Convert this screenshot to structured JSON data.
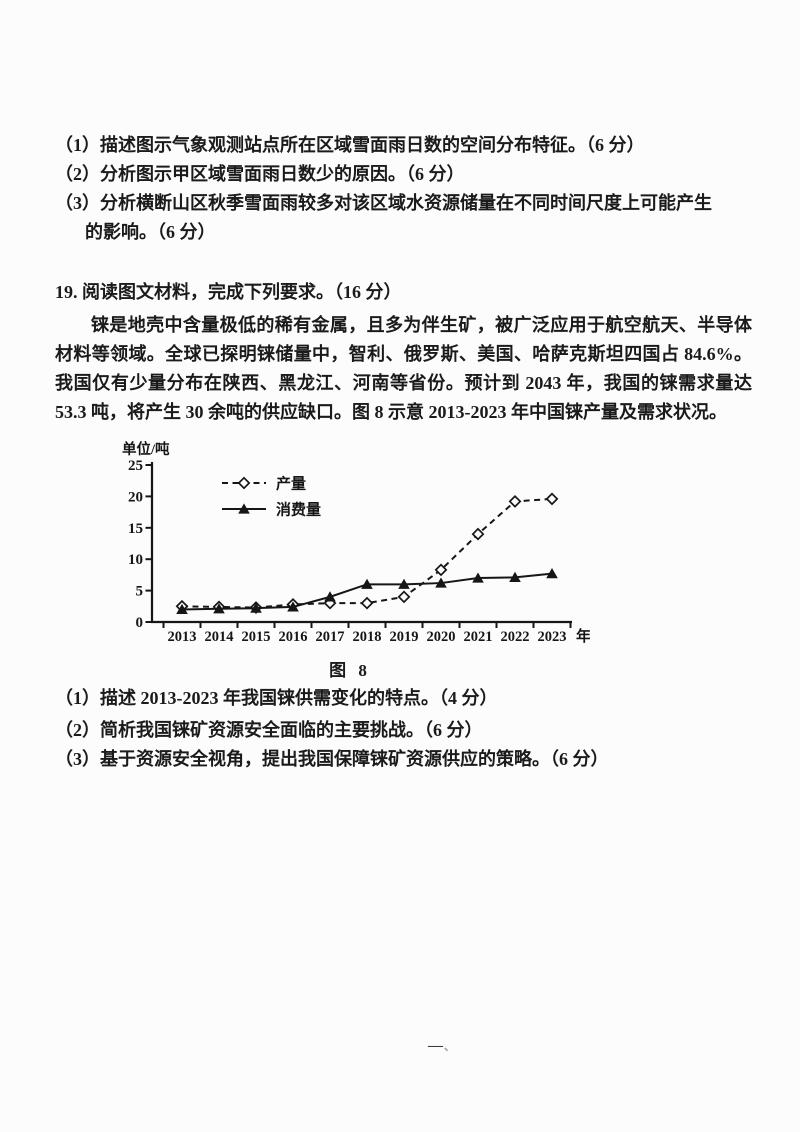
{
  "page": {
    "footer_mark": "—",
    "footer_speck": "、"
  },
  "question18": {
    "parts": [
      {
        "text": "（1）描述图示气象观测站点所在区域雪面雨日数的空间分布特征。（6 分）"
      },
      {
        "text": "（2）分析图示甲区域雪面雨日数少的原因。（6 分）"
      },
      {
        "text": "（3）分析横断山区秋季雪面雨较多对该区域水资源储量在不同时间尺度上可能产生"
      },
      {
        "text": "的影响。（6 分）"
      }
    ]
  },
  "question19": {
    "heading": "19. 阅读图文材料，完成下列要求。（16 分）",
    "material": "铼是地壳中含量极低的稀有金属，且多为伴生矿，被广泛应用于航空航天、半导体材料等领域。全球已探明铼储量中，智利、俄罗斯、美国、哈萨克斯坦四国占 84.6%。我国仅有少量分布在陕西、黑龙江、河南等省份。预计到 2043 年，我国的铼需求量达 53.3 吨，将产生 30 余吨的供应缺口。图 8 示意 2013-2023 年中国铼产量及需求状况。",
    "figure_caption": "图 8",
    "parts": [
      {
        "text": "（1）描述 2013-2023 年我国铼供需变化的特点。（4 分）"
      },
      {
        "text": "（2）简析我国铼矿资源安全面临的主要挑战。（6 分）"
      },
      {
        "text": "（3）基于资源安全视角，提出我国保障铼矿资源供应的策略。（6 分）"
      }
    ]
  },
  "chart_data": {
    "type": "line",
    "title": "",
    "ylabel": "单位/吨",
    "xlabel": "年",
    "categories": [
      "2013",
      "2014",
      "2015",
      "2016",
      "2017",
      "2018",
      "2019",
      "2020",
      "2021",
      "2022",
      "2023"
    ],
    "series": [
      {
        "name": "产量",
        "style": "dashed",
        "marker": "diamond-open",
        "values": [
          2.5,
          2.4,
          2.3,
          2.8,
          3.0,
          3.0,
          4.0,
          8.3,
          14.0,
          19.2,
          19.6
        ]
      },
      {
        "name": "消费量",
        "style": "solid",
        "marker": "triangle-filled",
        "values": [
          2.0,
          2.1,
          2.2,
          2.4,
          4.0,
          6.0,
          6.0,
          6.2,
          7.0,
          7.1,
          7.7
        ]
      }
    ],
    "ylim": [
      0,
      25
    ],
    "yticks": [
      0,
      5,
      10,
      15,
      20,
      25
    ],
    "legend_position": "top-left-inside",
    "grid": false,
    "ink_color": "#161616",
    "paper_color": "#fcfcfc"
  }
}
